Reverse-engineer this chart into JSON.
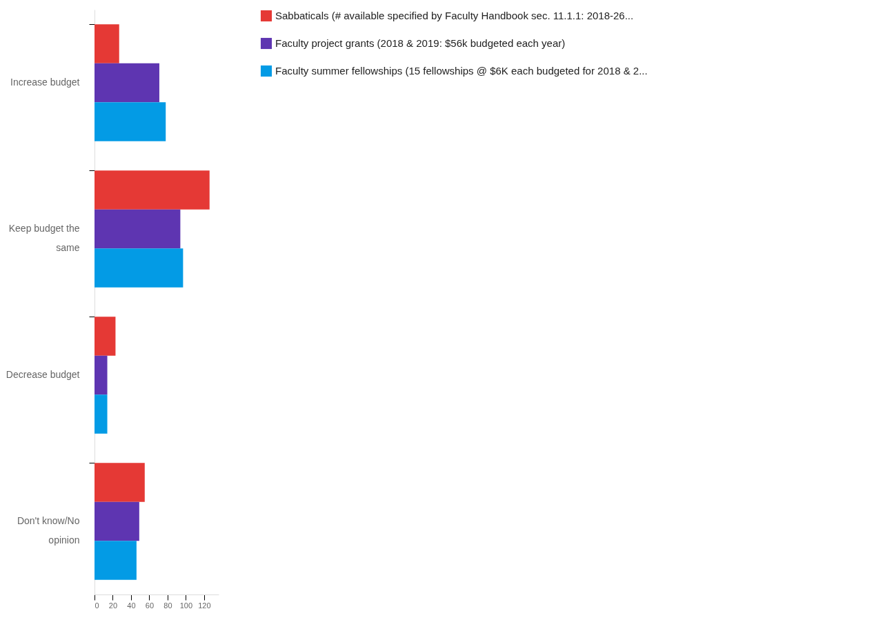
{
  "chart_data": {
    "type": "bar",
    "orientation": "horizontal",
    "categories": [
      "Increase budget",
      "Keep budget the same",
      "Decrease budget",
      "Don't know/No opinion"
    ],
    "series": [
      {
        "name": "Sabbaticals (# available specified by Faculty Handbook sec. 11.1.1: 2018-26...",
        "color": "#e53935",
        "values": [
          27,
          126,
          23,
          55
        ]
      },
      {
        "name": "Faculty project grants (2018 & 2019: $56k budgeted each year)",
        "color": "#5e35b1",
        "values": [
          71,
          94,
          14,
          49
        ]
      },
      {
        "name": "Faculty summer fellowships (15 fellowships @ $6K each budgeted for 2018 & 2...",
        "color": "#039be5",
        "values": [
          78,
          97,
          14,
          46
        ]
      }
    ],
    "xlim": [
      0,
      136
    ],
    "xticks": [
      0,
      20,
      40,
      60,
      80,
      100,
      120
    ],
    "grid": false,
    "legend": "right"
  }
}
